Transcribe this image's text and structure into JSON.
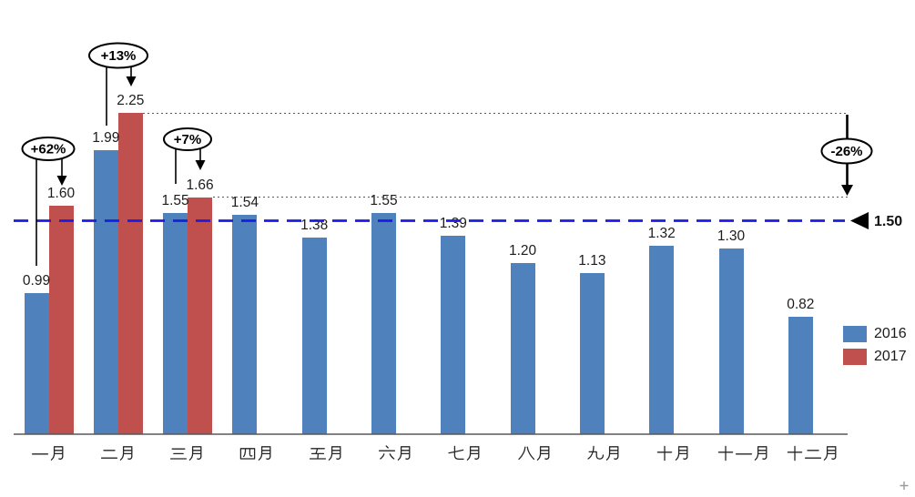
{
  "chart_data": {
    "type": "bar",
    "title": "",
    "xlabel": "",
    "ylabel": "",
    "ylim": [
      0,
      2.5
    ],
    "grid": false,
    "categories": [
      "一月",
      "二月",
      "三月",
      "四月",
      "五月",
      "六月",
      "七月",
      "八月",
      "九月",
      "十月",
      "十一月",
      "十二月"
    ],
    "series": [
      {
        "name": "2016",
        "color": "#4F81BD",
        "values": [
          0.99,
          1.99,
          1.55,
          1.54,
          1.38,
          1.55,
          1.39,
          1.2,
          1.13,
          1.32,
          1.3,
          0.82
        ]
      },
      {
        "name": "2017",
        "color": "#C0504D",
        "values": [
          1.6,
          2.25,
          1.66,
          null,
          null,
          null,
          null,
          null,
          null,
          null,
          null,
          null
        ]
      }
    ],
    "reference_line": {
      "value": 1.5,
      "label": "1.50",
      "color": "#1B1BE8",
      "style": "dashed"
    },
    "annotations": [
      {
        "label": "+62%",
        "month": "一月"
      },
      {
        "label": "+13%",
        "month": "二月"
      },
      {
        "label": "+7%",
        "month": "三月"
      },
      {
        "label": "-26%",
        "from_value": 2.25,
        "to_value": 1.66
      }
    ],
    "legend": {
      "position": "right"
    }
  }
}
